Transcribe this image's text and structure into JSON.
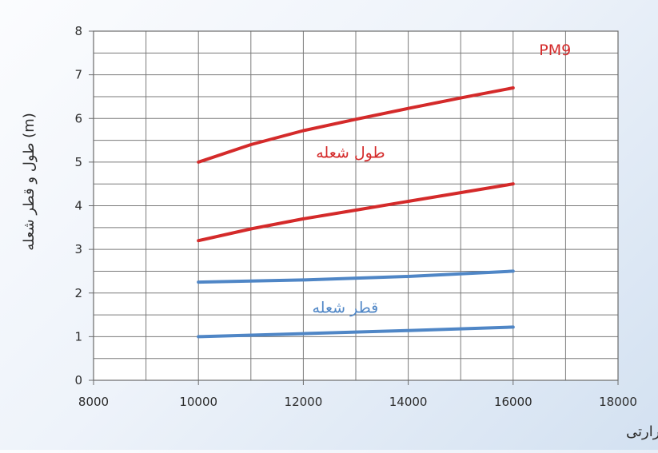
{
  "chart_data": {
    "type": "line",
    "xlabel": "(kW) ظرفیت حرارتی",
    "ylabel": "(m) طول و قطر شعله",
    "xlim": [
      8000,
      18000
    ],
    "ylim": [
      0,
      8
    ],
    "xticks": [
      8000,
      10000,
      12000,
      14000,
      16000,
      18000
    ],
    "yticks": [
      0,
      1,
      2,
      3,
      4,
      5,
      6,
      7,
      8
    ],
    "grid": true,
    "annotations": [
      {
        "text": "PM9",
        "x": 16800,
        "y": 7.45,
        "color": "#d42a2a"
      },
      {
        "text": "طول شعله",
        "x": 12900,
        "y": 5.1,
        "color": "#d42a2a"
      },
      {
        "text": "قطر شعله",
        "x": 12800,
        "y": 1.55,
        "color": "#4f86c6"
      }
    ],
    "series": [
      {
        "x": [
          10000,
          11000,
          12000,
          13000,
          14000,
          15000,
          16000
        ],
        "values": [
          5.0,
          5.4,
          5.72,
          5.98,
          6.23,
          6.47,
          6.7
        ],
        "color": "#d42a2a"
      },
      {
        "x": [
          10000,
          11000,
          12000,
          13000,
          14000,
          15000,
          16000
        ],
        "values": [
          3.2,
          3.47,
          3.7,
          3.9,
          4.1,
          4.3,
          4.5
        ],
        "color": "#d42a2a"
      },
      {
        "x": [
          10000,
          12000,
          14000,
          16000
        ],
        "values": [
          2.25,
          2.3,
          2.38,
          2.5
        ],
        "color": "#4f86c6"
      },
      {
        "x": [
          10000,
          12000,
          14000,
          16000
        ],
        "values": [
          1.0,
          1.07,
          1.14,
          1.22
        ],
        "color": "#4f86c6"
      }
    ]
  }
}
